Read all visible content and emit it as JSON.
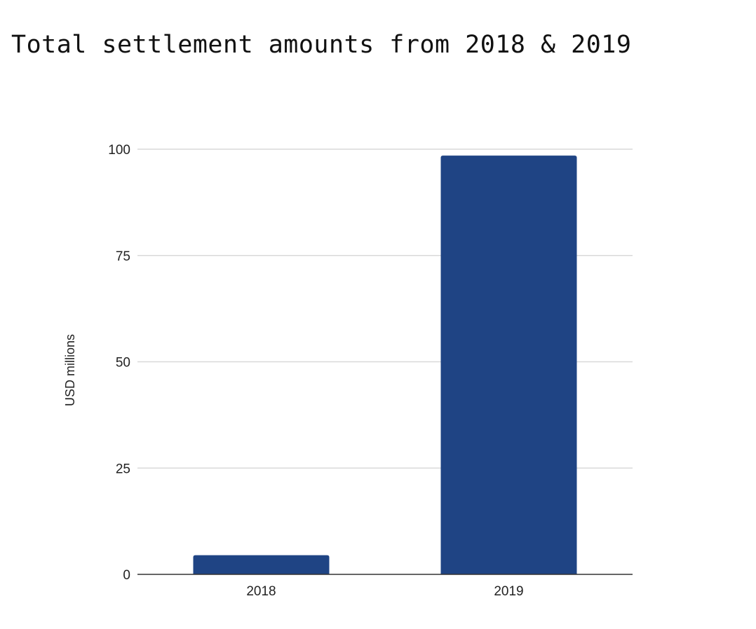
{
  "chart_data": {
    "type": "bar",
    "title": "Total settlement amounts from 2018 & 2019",
    "xlabel": "",
    "ylabel": "USD millions",
    "categories": [
      "2018",
      "2019"
    ],
    "values": [
      4.5,
      98.5
    ],
    "ylim": [
      0,
      100
    ],
    "yticks": [
      "0",
      "25",
      "50",
      "75",
      "100"
    ],
    "grid": true,
    "legend": "none",
    "bar_color": "#1f4484",
    "grid_color": "#d9d9d9",
    "axis_color": "#333333"
  }
}
